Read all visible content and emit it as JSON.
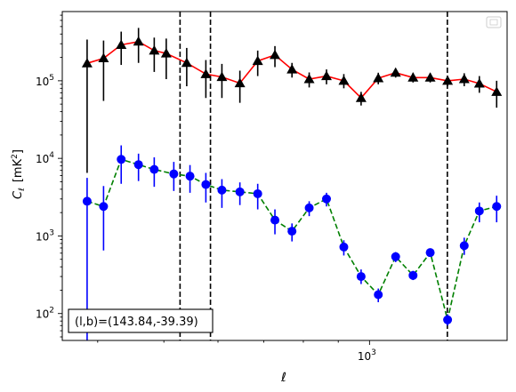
{
  "chart_data": {
    "type": "scatter",
    "xscale": "log",
    "yscale": "log",
    "xlim": [
      355,
      1590
    ],
    "ylim": [
      45,
      780000
    ],
    "xticks": [
      {
        "value": 1000,
        "label": "10",
        "exp": "3"
      }
    ],
    "yticks": [
      {
        "value": 100,
        "label": "10",
        "exp": "2"
      },
      {
        "value": 1000,
        "label": "10",
        "exp": "3"
      },
      {
        "value": 10000,
        "label": "10",
        "exp": "4"
      },
      {
        "value": 100000,
        "label": "10",
        "exp": "5"
      }
    ],
    "xlabel": "ℓ",
    "ylabel_main": "C",
    "ylabel_sub": "ℓ",
    "ylabel_unit": "[mK",
    "ylabel_unit_exp": "2",
    "ylabel_unit_close": "]",
    "annotation": "(l,b)=(143.84,-39.39)",
    "legend": "top-right (empty)",
    "vlines": [
      528,
      585,
      1300
    ],
    "series": [
      {
        "marker": "triangle",
        "line_color": "#ff0000",
        "marker_color": "#000000",
        "error_color": "#000000",
        "line_style": "solid",
        "points": [
          {
            "x": 386,
            "y": 168000,
            "lo": 6500,
            "hi": 340000
          },
          {
            "x": 408,
            "y": 195000,
            "lo": 55000,
            "hi": 330000
          },
          {
            "x": 433,
            "y": 290000,
            "lo": 160000,
            "hi": 430000
          },
          {
            "x": 459,
            "y": 320000,
            "lo": 170000,
            "hi": 480000
          },
          {
            "x": 484,
            "y": 245000,
            "lo": 130000,
            "hi": 360000
          },
          {
            "x": 504,
            "y": 225000,
            "lo": 105000,
            "hi": 350000
          },
          {
            "x": 540,
            "y": 170000,
            "lo": 85000,
            "hi": 265000
          },
          {
            "x": 576,
            "y": 122000,
            "lo": 60000,
            "hi": 185000
          },
          {
            "x": 608,
            "y": 112000,
            "lo": 60000,
            "hi": 165000
          },
          {
            "x": 646,
            "y": 93000,
            "lo": 52000,
            "hi": 135000
          },
          {
            "x": 686,
            "y": 180000,
            "lo": 115000,
            "hi": 245000
          },
          {
            "x": 727,
            "y": 215000,
            "lo": 150000,
            "hi": 280000
          },
          {
            "x": 770,
            "y": 140000,
            "lo": 110000,
            "hi": 170000
          },
          {
            "x": 816,
            "y": 105000,
            "lo": 82000,
            "hi": 128000
          },
          {
            "x": 865,
            "y": 115000,
            "lo": 90000,
            "hi": 140000
          },
          {
            "x": 917,
            "y": 100000,
            "lo": 80000,
            "hi": 122000
          },
          {
            "x": 972,
            "y": 60000,
            "lo": 48000,
            "hi": 72000
          },
          {
            "x": 1030,
            "y": 108000,
            "lo": 90000,
            "hi": 127000
          },
          {
            "x": 1092,
            "y": 127000,
            "lo": 110000,
            "hi": 145000
          },
          {
            "x": 1158,
            "y": 110000,
            "lo": 95000,
            "hi": 127000
          },
          {
            "x": 1227,
            "y": 110000,
            "lo": 95000,
            "hi": 125000
          },
          {
            "x": 1301,
            "y": 100000,
            "lo": 86000,
            "hi": 115000
          },
          {
            "x": 1376,
            "y": 105000,
            "lo": 85000,
            "hi": 125000
          },
          {
            "x": 1448,
            "y": 92000,
            "lo": 70000,
            "hi": 115000
          },
          {
            "x": 1535,
            "y": 72000,
            "lo": 45000,
            "hi": 100000
          }
        ]
      },
      {
        "marker": "circle",
        "line_color": "#008000",
        "marker_color": "#0000ff",
        "error_color": "#0000ff",
        "line_style": "dashed",
        "points": [
          {
            "x": 386,
            "y": 2800,
            "lo": 45,
            "hi": 5600
          },
          {
            "x": 408,
            "y": 2400,
            "lo": 650,
            "hi": 4400
          },
          {
            "x": 433,
            "y": 9700,
            "lo": 4700,
            "hi": 14700
          },
          {
            "x": 459,
            "y": 8300,
            "lo": 5100,
            "hi": 11500
          },
          {
            "x": 484,
            "y": 7200,
            "lo": 4300,
            "hi": 10300
          },
          {
            "x": 517,
            "y": 6300,
            "lo": 3800,
            "hi": 9000
          },
          {
            "x": 546,
            "y": 5900,
            "lo": 3600,
            "hi": 8200
          },
          {
            "x": 576,
            "y": 4600,
            "lo": 2700,
            "hi": 6500
          },
          {
            "x": 608,
            "y": 3900,
            "lo": 2300,
            "hi": 5400
          },
          {
            "x": 646,
            "y": 3700,
            "lo": 2500,
            "hi": 4900
          },
          {
            "x": 686,
            "y": 3500,
            "lo": 2200,
            "hi": 4700
          },
          {
            "x": 727,
            "y": 1600,
            "lo": 1050,
            "hi": 2200
          },
          {
            "x": 770,
            "y": 1150,
            "lo": 850,
            "hi": 1450
          },
          {
            "x": 816,
            "y": 2300,
            "lo": 1800,
            "hi": 2800
          },
          {
            "x": 865,
            "y": 3000,
            "lo": 2400,
            "hi": 3600
          },
          {
            "x": 917,
            "y": 720,
            "lo": 560,
            "hi": 880
          },
          {
            "x": 972,
            "y": 300,
            "lo": 240,
            "hi": 370
          },
          {
            "x": 1030,
            "y": 175,
            "lo": 140,
            "hi": 210
          },
          {
            "x": 1092,
            "y": 540,
            "lo": 460,
            "hi": 620
          },
          {
            "x": 1158,
            "y": 310,
            "lo": 270,
            "hi": 355
          },
          {
            "x": 1227,
            "y": 610,
            "lo": 540,
            "hi": 680
          },
          {
            "x": 1301,
            "y": 83,
            "lo": 70,
            "hi": 98
          },
          {
            "x": 1376,
            "y": 750,
            "lo": 570,
            "hi": 950
          },
          {
            "x": 1448,
            "y": 2100,
            "lo": 1500,
            "hi": 2700
          },
          {
            "x": 1535,
            "y": 2400,
            "lo": 1500,
            "hi": 3300
          }
        ]
      }
    ]
  }
}
